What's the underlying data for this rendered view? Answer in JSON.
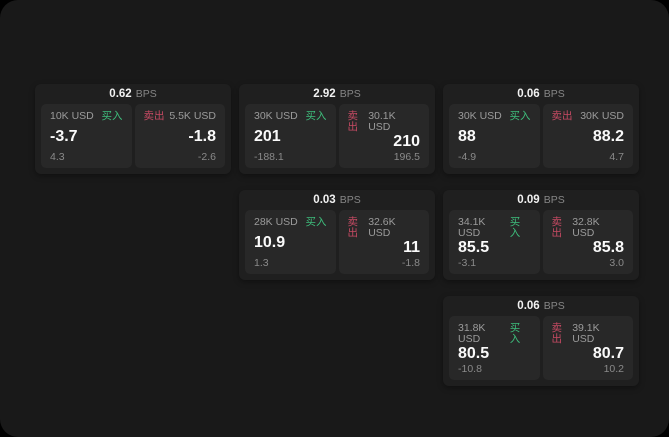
{
  "labels": {
    "bps": "BPS",
    "buy": "买入",
    "sell": "卖出"
  },
  "colors": {
    "window_bg": "#191919",
    "card_bg": "#1f1f1f",
    "panel_bg": "#282828",
    "buy_green": "#3ebe7c",
    "sell_red": "#c64a63"
  },
  "cards": [
    {
      "bps": "0.62",
      "buy": {
        "amount": "10K USD",
        "price": "-3.7",
        "delta": "4.3"
      },
      "sell": {
        "amount": "5.5K USD",
        "price": "-1.8",
        "delta": "-2.6"
      }
    },
    {
      "bps": "2.92",
      "buy": {
        "amount": "30K USD",
        "price": "201",
        "delta": "-188.1"
      },
      "sell": {
        "amount": "30.1K USD",
        "price": "210",
        "delta": "196.5"
      }
    },
    {
      "bps": "0.06",
      "buy": {
        "amount": "30K USD",
        "price": "88",
        "delta": "-4.9"
      },
      "sell": {
        "amount": "30K USD",
        "price": "88.2",
        "delta": "4.7"
      }
    },
    {
      "bps": "0.03",
      "buy": {
        "amount": "28K USD",
        "price": "10.9",
        "delta": "1.3"
      },
      "sell": {
        "amount": "32.6K USD",
        "price": "11",
        "delta": "-1.8"
      }
    },
    {
      "bps": "0.09",
      "buy": {
        "amount": "34.1K USD",
        "price": "85.5",
        "delta": "-3.1"
      },
      "sell": {
        "amount": "32.8K USD",
        "price": "85.8",
        "delta": "3.0"
      }
    },
    {
      "bps": "0.06",
      "buy": {
        "amount": "31.8K USD",
        "price": "80.5",
        "delta": "-10.8"
      },
      "sell": {
        "amount": "39.1K USD",
        "price": "80.7",
        "delta": "10.2"
      }
    }
  ]
}
